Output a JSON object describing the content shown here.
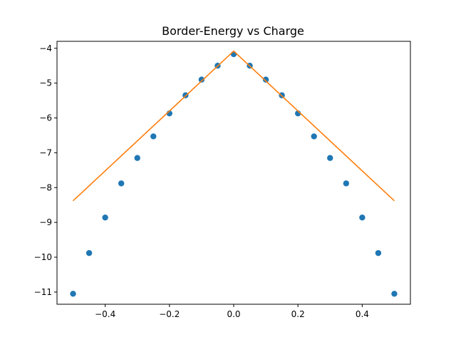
{
  "chart_data": {
    "type": "scatter",
    "title": "Border-Energy vs Charge",
    "xlabel": "",
    "ylabel": "",
    "xlim": [
      -0.55,
      0.55
    ],
    "ylim": [
      -11.35,
      -3.8
    ],
    "grid": false,
    "x_ticks": [
      -0.4,
      -0.2,
      0.0,
      0.2,
      0.4
    ],
    "x_tick_labels": [
      "−0.4",
      "−0.2",
      "0.0",
      "0.2",
      "0.4"
    ],
    "y_ticks": [
      -4,
      -5,
      -6,
      -7,
      -8,
      -9,
      -10,
      -11
    ],
    "y_tick_labels": [
      "−4",
      "−5",
      "−6",
      "−7",
      "−8",
      "−9",
      "−10",
      "−11"
    ],
    "series": [
      {
        "kind": "scatter",
        "color": "#1f77b4",
        "x": [
          -0.5,
          -0.45,
          -0.4,
          -0.35,
          -0.3,
          -0.25,
          -0.2,
          -0.15,
          -0.1,
          -0.05,
          0.0,
          0.05,
          0.1,
          0.15,
          0.2,
          0.25,
          0.3,
          0.35,
          0.4,
          0.45,
          0.5
        ],
        "y": [
          -11.05,
          -9.88,
          -8.86,
          -7.88,
          -7.15,
          -6.53,
          -5.87,
          -5.35,
          -4.9,
          -4.5,
          -4.17,
          -4.5,
          -4.9,
          -5.35,
          -5.87,
          -6.53,
          -7.15,
          -7.88,
          -8.86,
          -9.88,
          -11.05
        ]
      },
      {
        "kind": "line",
        "color": "#ff7f0e",
        "x": [
          -0.5,
          0.0,
          0.5
        ],
        "y": [
          -8.38,
          -4.08,
          -8.38
        ]
      }
    ]
  }
}
